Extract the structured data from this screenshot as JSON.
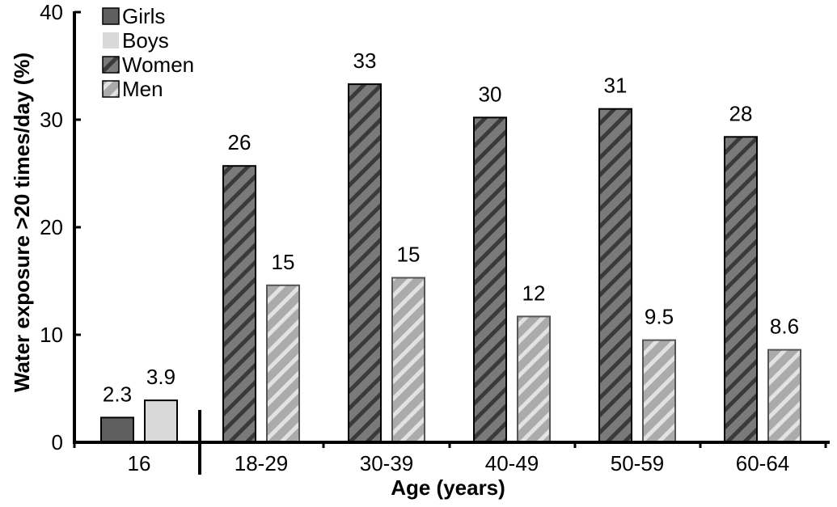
{
  "chart_data": {
    "type": "bar",
    "title": "",
    "xlabel": "Age (years)",
    "ylabel": "Water exposure >20 times/day (%)",
    "ylim": [
      0,
      40
    ],
    "yticks": [
      0,
      10,
      20,
      30,
      40
    ],
    "grid": false,
    "legend_position": "top-left",
    "categories": [
      "16",
      "18-29",
      "30-39",
      "40-49",
      "50-59",
      "60-64"
    ],
    "series": [
      {
        "name": "Girls",
        "style": "solid",
        "color": "#5f5f5f",
        "values": [
          2.3,
          null,
          null,
          null,
          null,
          null
        ],
        "labels": [
          "2.3",
          null,
          null,
          null,
          null,
          null
        ]
      },
      {
        "name": "Boys",
        "style": "solid",
        "color": "#d9d9d9",
        "values": [
          3.9,
          null,
          null,
          null,
          null,
          null
        ],
        "labels": [
          "3.9",
          null,
          null,
          null,
          null,
          null
        ]
      },
      {
        "name": "Women",
        "style": "hatched",
        "color": "#6f6f6f",
        "values": [
          null,
          25.7,
          33.3,
          30.2,
          31.0,
          28.4
        ],
        "labels": [
          null,
          "26",
          "33",
          "30",
          "31",
          "28"
        ]
      },
      {
        "name": "Men",
        "style": "hatched",
        "color": "#b5b5b5",
        "values": [
          null,
          14.6,
          15.3,
          11.7,
          9.5,
          8.6
        ],
        "labels": [
          null,
          "15",
          "15",
          "12",
          "9.5",
          "8.6"
        ]
      }
    ]
  }
}
